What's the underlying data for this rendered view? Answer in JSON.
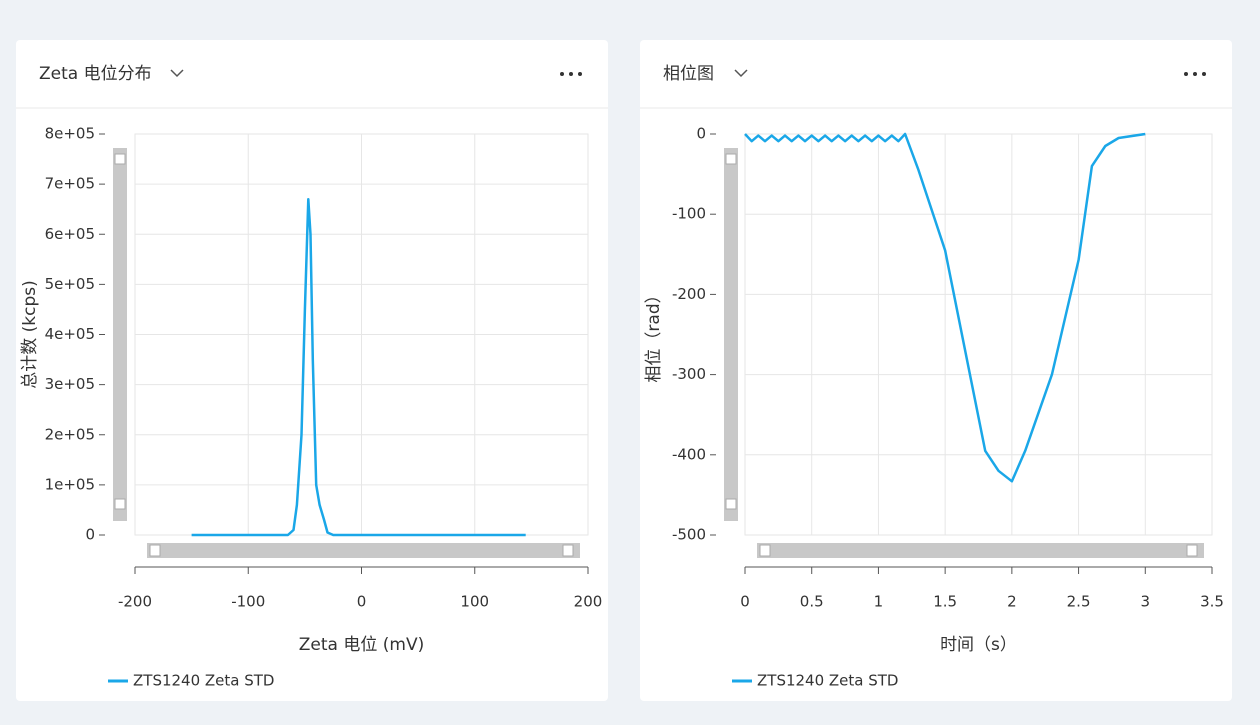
{
  "chart_data": [
    {
      "type": "line",
      "title": "Zeta 电位分布",
      "x_label": "Zeta 电位 (mV)",
      "y_label": "总计数 (kcps)",
      "x": [
        -150,
        -65,
        -60,
        -57,
        -53,
        -50,
        -47,
        -45,
        -43,
        -40,
        -37,
        -33,
        -30,
        -25,
        145
      ],
      "series": [
        {
          "name": "ZTS1240 Zeta STD",
          "color": "#1aa7e8",
          "values": [
            0,
            0,
            10000,
            60000,
            200000,
            450000,
            670000,
            600000,
            350000,
            100000,
            60000,
            30000,
            5000,
            0,
            0
          ]
        }
      ],
      "xlim": [
        -200,
        200
      ],
      "xticks": [
        -200,
        -100,
        0,
        100,
        200
      ],
      "ylim": [
        0,
        800000
      ],
      "yticks": [
        0,
        {
          "value": 100000,
          "label": "1e+05"
        },
        {
          "value": 200000,
          "label": "2e+05"
        },
        {
          "value": 300000,
          "label": "3e+05"
        },
        {
          "value": 400000,
          "label": "4e+05"
        },
        {
          "value": 500000,
          "label": "5e+05"
        },
        {
          "value": 600000,
          "label": "6e+05"
        },
        {
          "value": 700000,
          "label": "7e+05"
        },
        {
          "value": 800000,
          "label": "8e+05"
        }
      ],
      "grid": true,
      "legend": "bottom-left"
    },
    {
      "type": "line",
      "title": "相位图",
      "x_label": "时间（s）",
      "y_label": "相位（rad）",
      "x": [
        0,
        0.05,
        0.1,
        0.15,
        0.2,
        0.25,
        0.3,
        0.35,
        0.4,
        0.45,
        0.5,
        0.55,
        0.6,
        0.65,
        0.7,
        0.75,
        0.8,
        0.85,
        0.9,
        0.95,
        1.0,
        1.05,
        1.1,
        1.15,
        1.2,
        1.3,
        1.5,
        1.8,
        1.9,
        2.0,
        2.1,
        2.3,
        2.5,
        2.6,
        2.7,
        2.8,
        3.0
      ],
      "series": [
        {
          "name": "ZTS1240 Zeta STD",
          "color": "#1aa7e8",
          "values": [
            0,
            -9,
            -2,
            -9,
            -2,
            -9,
            -2,
            -9,
            -2,
            -9,
            -2,
            -9,
            -2,
            -9,
            -2,
            -9,
            -2,
            -9,
            -2,
            -9,
            -2,
            -9,
            -2,
            -9,
            0,
            -45,
            -145,
            -395,
            -420,
            -433,
            -395,
            -300,
            -157,
            -40,
            -15,
            -5,
            0
          ]
        }
      ],
      "xlim": [
        0,
        3.5
      ],
      "xticks": [
        0,
        0.5,
        1,
        1.5,
        2,
        2.5,
        3,
        3.5
      ],
      "ylim": [
        -500,
        0
      ],
      "yticks": [
        -500,
        -400,
        -300,
        -200,
        -100,
        0
      ],
      "grid": true,
      "legend": "bottom-left"
    }
  ]
}
